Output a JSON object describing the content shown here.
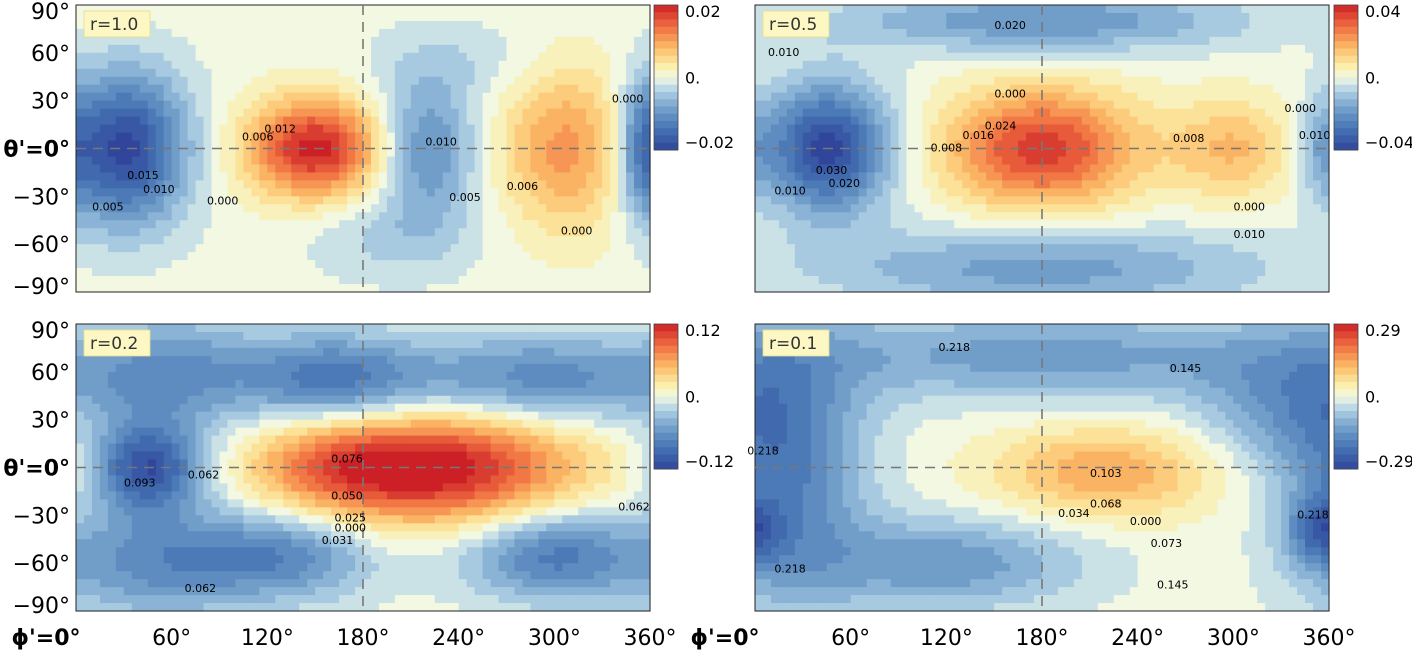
{
  "chart_data": [
    {
      "type": "heatmap",
      "panel_label": "r=1.0",
      "colorbar": {
        "max_label": "0.02",
        "mid_label": "0.",
        "min_label": "−0.02",
        "range": [
          -0.02,
          0.02
        ]
      },
      "xlim": [
        0,
        360
      ],
      "ylim": [
        -90,
        90
      ],
      "blobs": [
        {
          "x": 30,
          "y": 0,
          "value": -0.02,
          "sx": 28,
          "sy": 34
        },
        {
          "x": 150,
          "y": 0,
          "value": 0.02,
          "sx": 30,
          "sy": 22
        },
        {
          "x": 220,
          "y": 0,
          "value": -0.011,
          "sx": 22,
          "sy": 30
        },
        {
          "x": 308,
          "y": 0,
          "value": 0.011,
          "sx": 30,
          "sy": 36
        },
        {
          "x": 355,
          "y": 0,
          "value": -0.009,
          "sx": 10,
          "sy": 30
        },
        {
          "x": 200,
          "y": -55,
          "value": -0.004,
          "sx": 40,
          "sy": 20
        },
        {
          "x": 240,
          "y": 55,
          "value": -0.003,
          "sx": 40,
          "sy": 18
        }
      ],
      "contour_labels": [
        {
          "text": "0.015",
          "x": 42,
          "y": -19
        },
        {
          "text": "0.010",
          "x": 52,
          "y": -28
        },
        {
          "text": "0.005",
          "x": 20,
          "y": -39
        },
        {
          "text": "0.000",
          "x": 92,
          "y": -35
        },
        {
          "text": "0.006",
          "x": 114,
          "y": 5
        },
        {
          "text": "0.012",
          "x": 128,
          "y": 10
        },
        {
          "text": "0.010",
          "x": 229,
          "y": 2
        },
        {
          "text": "0.005",
          "x": 244,
          "y": -33
        },
        {
          "text": "0.006",
          "x": 280,
          "y": -26
        },
        {
          "text": "0.000",
          "x": 314,
          "y": -54
        },
        {
          "text": "0.000",
          "x": 346,
          "y": 29
        }
      ]
    },
    {
      "type": "heatmap",
      "panel_label": "r=0.5",
      "colorbar": {
        "max_label": "0.04",
        "mid_label": "0.",
        "min_label": "−0.04",
        "range": [
          -0.04,
          0.04
        ]
      },
      "xlim": [
        0,
        360
      ],
      "ylim": [
        -90,
        90
      ],
      "blobs": [
        {
          "x": 45,
          "y": 0,
          "value": -0.04,
          "sx": 28,
          "sy": 28
        },
        {
          "x": 180,
          "y": 0,
          "value": 0.036,
          "sx": 42,
          "sy": 26
        },
        {
          "x": 300,
          "y": 0,
          "value": 0.016,
          "sx": 28,
          "sy": 22
        },
        {
          "x": 180,
          "y": 80,
          "value": -0.02,
          "sx": 90,
          "sy": 14
        },
        {
          "x": 180,
          "y": -75,
          "value": -0.018,
          "sx": 100,
          "sy": 18
        },
        {
          "x": 355,
          "y": 0,
          "value": -0.012,
          "sx": 10,
          "sy": 24
        }
      ],
      "contour_labels": [
        {
          "text": "0.020",
          "x": 160,
          "y": 75
        },
        {
          "text": "0.010",
          "x": 18,
          "y": 58
        },
        {
          "text": "0.000",
          "x": 160,
          "y": 32
        },
        {
          "text": "0.030",
          "x": 48,
          "y": -16
        },
        {
          "text": "0.020",
          "x": 56,
          "y": -24
        },
        {
          "text": "0.010",
          "x": 22,
          "y": -29
        },
        {
          "text": "0.008",
          "x": 120,
          "y": -2
        },
        {
          "text": "0.016",
          "x": 140,
          "y": 6
        },
        {
          "text": "0.024",
          "x": 154,
          "y": 12
        },
        {
          "text": "0.008",
          "x": 272,
          "y": 4
        },
        {
          "text": "0.000",
          "x": 342,
          "y": 23
        },
        {
          "text": "0.010",
          "x": 351,
          "y": 6
        },
        {
          "text": "0.000",
          "x": 310,
          "y": -39
        },
        {
          "text": "0.010",
          "x": 310,
          "y": -56
        }
      ]
    },
    {
      "type": "heatmap",
      "panel_label": "r=0.2",
      "colorbar": {
        "max_label": "0.12",
        "mid_label": "0.",
        "min_label": "−0.12",
        "range": [
          -0.12,
          0.12
        ]
      },
      "xlim": [
        0,
        360
      ],
      "ylim": [
        -90,
        90
      ],
      "blobs": [
        {
          "x": 45,
          "y": 0,
          "value": -0.11,
          "sx": 25,
          "sy": 20
        },
        {
          "x": 230,
          "y": 0,
          "value": 0.12,
          "sx": 60,
          "sy": 25
        },
        {
          "x": 160,
          "y": 0,
          "value": 0.05,
          "sx": 40,
          "sy": 22
        },
        {
          "x": 160,
          "y": 55,
          "value": -0.08,
          "sx": 40,
          "sy": 20
        },
        {
          "x": 290,
          "y": 55,
          "value": -0.07,
          "sx": 60,
          "sy": 20
        },
        {
          "x": 130,
          "y": -55,
          "value": -0.07,
          "sx": 40,
          "sy": 20
        },
        {
          "x": 300,
          "y": -55,
          "value": -0.08,
          "sx": 40,
          "sy": 20
        },
        {
          "x": 60,
          "y": 60,
          "value": -0.06,
          "sx": 40,
          "sy": 25
        },
        {
          "x": 50,
          "y": -60,
          "value": -0.06,
          "sx": 40,
          "sy": 25
        }
      ],
      "contour_labels": [
        {
          "text": "0.093",
          "x": 40,
          "y": -12
        },
        {
          "text": "0.062",
          "x": 80,
          "y": -7
        },
        {
          "text": "0.076",
          "x": 170,
          "y": 3
        },
        {
          "text": "0.050",
          "x": 170,
          "y": -20
        },
        {
          "text": "0.025",
          "x": 172,
          "y": -34
        },
        {
          "text": "0.000",
          "x": 172,
          "y": -40
        },
        {
          "text": "0.031",
          "x": 164,
          "y": -48
        },
        {
          "text": "0.062",
          "x": 78,
          "y": -78
        },
        {
          "text": "0.062",
          "x": 350,
          "y": -27
        }
      ]
    },
    {
      "type": "heatmap",
      "panel_label": "r=0.1",
      "colorbar": {
        "max_label": "0.29",
        "mid_label": "0.",
        "min_label": "−0.29",
        "range": [
          -0.29,
          0.29
        ]
      },
      "xlim": [
        0,
        360
      ],
      "ylim": [
        -90,
        90
      ],
      "blobs": [
        {
          "x": 220,
          "y": -3,
          "value": 0.14,
          "sx": 50,
          "sy": 20
        },
        {
          "x": 20,
          "y": 0,
          "value": -0.18,
          "sx": 35,
          "sy": 60
        },
        {
          "x": 355,
          "y": -40,
          "value": -0.15,
          "sx": 15,
          "sy": 15
        },
        {
          "x": 120,
          "y": -60,
          "value": -0.14,
          "sx": 60,
          "sy": 20
        },
        {
          "x": 180,
          "y": 70,
          "value": -0.13,
          "sx": 120,
          "sy": 20
        },
        {
          "x": 330,
          "y": 40,
          "value": -0.1,
          "sx": 40,
          "sy": 30
        }
      ],
      "contour_labels": [
        {
          "text": "0.218",
          "x": 125,
          "y": 73
        },
        {
          "text": "0.145",
          "x": 270,
          "y": 60
        },
        {
          "text": "0.218",
          "x": 5,
          "y": 8
        },
        {
          "text": "0.103",
          "x": 220,
          "y": -6
        },
        {
          "text": "0.068",
          "x": 220,
          "y": -25
        },
        {
          "text": "0.034",
          "x": 200,
          "y": -31
        },
        {
          "text": "0.000",
          "x": 245,
          "y": -36
        },
        {
          "text": "0.073",
          "x": 258,
          "y": -50
        },
        {
          "text": "0.145",
          "x": 262,
          "y": -76
        },
        {
          "text": "0.218",
          "x": 22,
          "y": -66
        },
        {
          "text": "0.218",
          "x": 350,
          "y": -32
        }
      ]
    }
  ],
  "axes": {
    "y_ticks": [
      "90°",
      "60°",
      "30°",
      "θ'=0°",
      "−30°",
      "−60°",
      "−90°"
    ],
    "x_ticks": [
      "ϕ'=0°",
      "60°",
      "120°",
      "180°",
      "240°",
      "300°",
      "360°"
    ]
  }
}
